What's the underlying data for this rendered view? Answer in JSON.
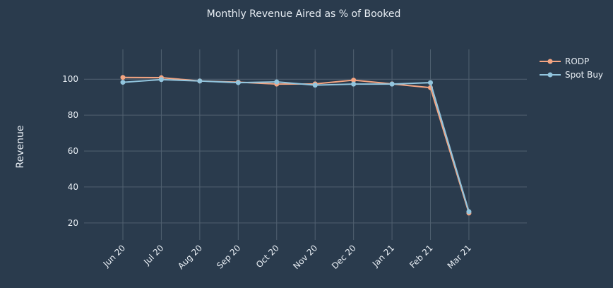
{
  "chart_data": {
    "type": "line",
    "title": "Monthly Revenue Aired as % of Booked",
    "xlabel": "",
    "ylabel": "Revenue",
    "categories": [
      "Jun 20",
      "Jul 20",
      "Aug 20",
      "Sep 20",
      "Oct 20",
      "Nov 20",
      "Dec 20",
      "Jan 21",
      "Feb 21",
      "Mar 21"
    ],
    "ylim": [
      10.5,
      116.6
    ],
    "yticks": [
      20,
      40,
      60,
      80,
      100
    ],
    "grid": true,
    "legend_position": "top-right",
    "series": [
      {
        "name": "RODP",
        "color": "#f4a582",
        "values": [
          101.0,
          100.9,
          99.0,
          98.4,
          97.3,
          97.4,
          99.5,
          97.4,
          95.3,
          25.5
        ]
      },
      {
        "name": "Spot Buy",
        "color": "#92c5de",
        "values": [
          98.3,
          99.8,
          99.0,
          98.1,
          98.5,
          96.7,
          97.3,
          97.3,
          98.1,
          26.3
        ]
      }
    ]
  }
}
